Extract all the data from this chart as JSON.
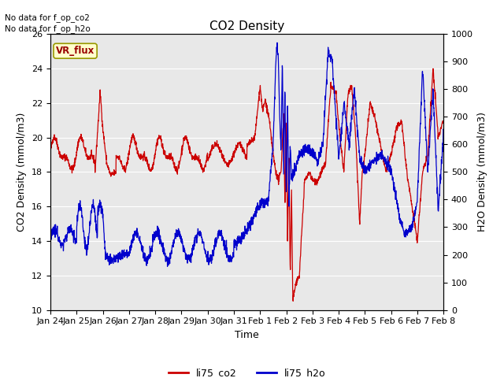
{
  "title": "CO2 Density",
  "xlabel": "Time",
  "ylabel_left": "CO2 Density (mmol/m3)",
  "ylabel_right": "H2O Density (mmol/m3)",
  "ylim_left": [
    10,
    26
  ],
  "ylim_right": [
    0,
    1000
  ],
  "yticks_left": [
    10,
    12,
    14,
    16,
    18,
    20,
    22,
    24,
    26
  ],
  "yticks_right": [
    0,
    100,
    200,
    300,
    400,
    500,
    600,
    700,
    800,
    900,
    1000
  ],
  "xtick_labels": [
    "Jan 24",
    "Jan 25",
    "Jan 26",
    "Jan 27",
    "Jan 28",
    "Jan 29",
    "Jan 30",
    "Jan 31",
    "Feb 1",
    "Feb 2",
    "Feb 3",
    "Feb 4",
    "Feb 5",
    "Feb 6",
    "Feb 7",
    "Feb 8"
  ],
  "legend_entries": [
    "li75_co2",
    "li75_h2o"
  ],
  "legend_colors": [
    "#cc0000",
    "#0000cc"
  ],
  "no_data_text": [
    "No data for f_op_co2",
    "No data for f_op_h2o"
  ],
  "vr_flux_label": "VR_flux",
  "bg_color": "#e8e8e8",
  "line_color_co2": "#cc0000",
  "line_color_h2o": "#0000cc",
  "title_fontsize": 11,
  "axis_fontsize": 9,
  "tick_fontsize": 8,
  "legend_fontsize": 9
}
